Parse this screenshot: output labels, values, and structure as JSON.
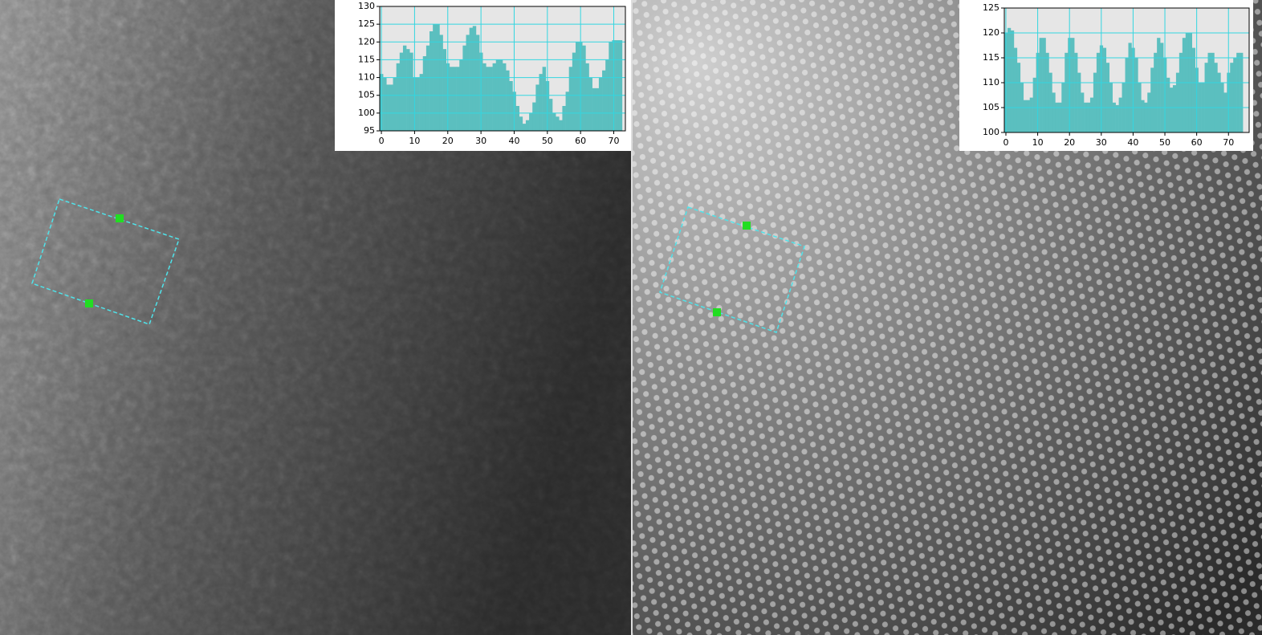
{
  "chart_data": [
    {
      "type": "bar",
      "x": [
        0,
        1,
        2,
        3,
        4,
        5,
        6,
        7,
        8,
        9,
        10,
        11,
        12,
        13,
        14,
        15,
        16,
        17,
        18,
        19,
        20,
        21,
        22,
        23,
        24,
        25,
        26,
        27,
        28,
        29,
        30,
        31,
        32,
        33,
        34,
        35,
        36,
        37,
        38,
        39,
        40,
        41,
        42,
        43,
        44,
        45,
        46,
        47,
        48,
        49,
        50,
        51,
        52,
        53,
        54,
        55,
        56,
        57,
        58,
        59,
        60,
        61,
        62,
        63,
        64,
        65,
        66,
        67,
        68,
        69,
        70,
        71,
        72
      ],
      "values": [
        111,
        110,
        108,
        108,
        110,
        114,
        117,
        119,
        118,
        117,
        110,
        110,
        111,
        116,
        119,
        123,
        125,
        125,
        122,
        118,
        114,
        113,
        113,
        113,
        115,
        119,
        122,
        124,
        124.5,
        122,
        117,
        114,
        113,
        113,
        114,
        115,
        115,
        114,
        112,
        109,
        106,
        102,
        99,
        97,
        98,
        100,
        103,
        108,
        111,
        113,
        109,
        104,
        100,
        99,
        98,
        102,
        106,
        113,
        117,
        120,
        120,
        119,
        114,
        110,
        107,
        107,
        110,
        112,
        115,
        120,
        120.5,
        120.5,
        120.5
      ],
      "color": "#5bbfbf",
      "xlim": [
        -0.5,
        73.5
      ],
      "xticks": [
        0,
        10,
        20,
        30,
        40,
        50,
        60,
        70
      ],
      "ylim": [
        95,
        130
      ],
      "yticks": [
        95,
        100,
        105,
        110,
        115,
        120,
        125,
        130
      ],
      "grid": true
    },
    {
      "type": "bar",
      "x": [
        0,
        1,
        2,
        3,
        4,
        5,
        6,
        7,
        8,
        9,
        10,
        11,
        12,
        13,
        14,
        15,
        16,
        17,
        18,
        19,
        20,
        21,
        22,
        23,
        24,
        25,
        26,
        27,
        28,
        29,
        30,
        31,
        32,
        33,
        34,
        35,
        36,
        37,
        38,
        39,
        40,
        41,
        42,
        43,
        44,
        45,
        46,
        47,
        48,
        49,
        50,
        51,
        52,
        53,
        54,
        55,
        56,
        57,
        58,
        59,
        60,
        61,
        62,
        63,
        64,
        65,
        66,
        67,
        68,
        69,
        70,
        71,
        72,
        73,
        74
      ],
      "values": [
        120,
        121,
        120.5,
        117,
        114,
        110,
        106.5,
        106.5,
        107,
        111,
        116,
        119,
        119,
        116,
        112,
        108,
        106,
        106,
        110,
        116,
        119,
        119,
        116,
        112,
        108,
        106,
        106,
        107,
        112,
        116,
        117.5,
        117,
        114,
        110,
        106,
        105.5,
        107,
        110,
        115,
        118,
        117,
        115,
        110,
        106.5,
        106,
        108,
        113,
        116,
        119,
        118,
        115,
        111,
        109,
        109.5,
        112,
        116,
        119,
        120,
        120,
        117,
        113,
        110,
        110,
        114,
        116,
        116,
        114,
        112,
        110,
        108,
        112,
        114,
        115,
        116,
        116
      ],
      "color": "#5bbfbf",
      "xlim": [
        -0.5,
        76.5
      ],
      "xticks": [
        0,
        10,
        20,
        30,
        40,
        50,
        60,
        70
      ],
      "ylim": [
        100,
        125
      ],
      "yticks": [
        100,
        105,
        110,
        115,
        120,
        125
      ],
      "grid": true
    }
  ]
}
